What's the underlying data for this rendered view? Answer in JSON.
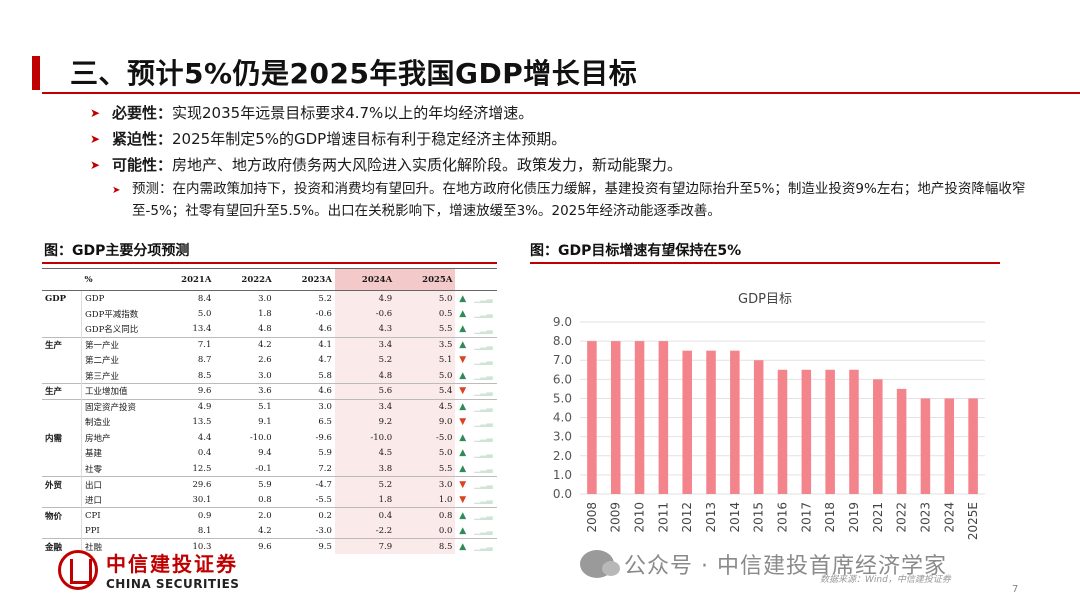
{
  "slide": {
    "title": "三、预计5%仍是2025年我国GDP增长目标",
    "page_number": "7",
    "source": "数据来源：Wind，中信建投证券",
    "watermark": "公众号 · 中信建投首席经济学家",
    "logo": {
      "cn": "中信建投证券",
      "en": "CHINA SECURITIES"
    }
  },
  "bullets": [
    {
      "label": "必要性：",
      "text": "实现2035年远景目标要求4.7%以上的年均经济增速。"
    },
    {
      "label": "紧迫性：",
      "text": "2025年制定5%的GDP增速目标有利于稳定经济主体预期。"
    },
    {
      "label": "可能性：",
      "text": "房地产、地方政府债务两大风险进入实质化解阶段。政策发力，新动能聚力。"
    }
  ],
  "sub_bullet": "预测：在内需政策加持下，投资和消费均有望回升。在地方政府化债压力缓解，基建投资有望边际抬升至5%；制造业投资9%左右；地产投资降幅收窄至-5%；社零有望回升至5.5%。出口在关税影响下，增速放缓至3%。2025年经济动能逐季改善。",
  "left_caption": "图：GDP主要分项预测",
  "right_caption": "图：GDP目标增速有望保持在5%",
  "table": {
    "headers": [
      "%",
      "2021A",
      "2022A",
      "2023A",
      "2024A",
      "2025A"
    ],
    "rows": [
      {
        "cat": "GDP",
        "name": "GDP",
        "v": [
          "8.4",
          "3.0",
          "5.2",
          "4.9",
          "5.0"
        ],
        "trend": "up",
        "grp": true
      },
      {
        "cat": "",
        "name": "GDP平减指数",
        "v": [
          "5.0",
          "1.8",
          "-0.6",
          "-0.6",
          "0.5"
        ],
        "trend": "up"
      },
      {
        "cat": "",
        "name": "GDP名义同比",
        "v": [
          "13.4",
          "4.8",
          "4.6",
          "4.3",
          "5.5"
        ],
        "trend": "up"
      },
      {
        "cat": "生产",
        "name": "第一产业",
        "v": [
          "7.1",
          "4.2",
          "4.1",
          "3.4",
          "3.5"
        ],
        "trend": "up",
        "grp": true
      },
      {
        "cat": "",
        "name": "第二产业",
        "v": [
          "8.7",
          "2.6",
          "4.7",
          "5.2",
          "5.1"
        ],
        "trend": "down"
      },
      {
        "cat": "",
        "name": "第三产业",
        "v": [
          "8.5",
          "3.0",
          "5.8",
          "4.8",
          "5.0"
        ],
        "trend": "up"
      },
      {
        "cat": "生产",
        "name": "工业增加值",
        "v": [
          "9.6",
          "3.6",
          "4.6",
          "5.6",
          "5.4"
        ],
        "trend": "down",
        "grp": true
      },
      {
        "cat": "",
        "name": "固定资产投资",
        "v": [
          "4.9",
          "5.1",
          "3.0",
          "3.4",
          "4.5"
        ],
        "trend": "up",
        "grp": true
      },
      {
        "cat": "",
        "name": "制造业",
        "v": [
          "13.5",
          "9.1",
          "6.5",
          "9.2",
          "9.0"
        ],
        "trend": "down"
      },
      {
        "cat": "内需",
        "name": "房地产",
        "v": [
          "4.4",
          "-10.0",
          "-9.6",
          "-10.0",
          "-5.0"
        ],
        "trend": "up"
      },
      {
        "cat": "",
        "name": "基建",
        "v": [
          "0.4",
          "9.4",
          "5.9",
          "4.5",
          "5.0"
        ],
        "trend": "up"
      },
      {
        "cat": "",
        "name": "社零",
        "v": [
          "12.5",
          "-0.1",
          "7.2",
          "3.8",
          "5.5"
        ],
        "trend": "up"
      },
      {
        "cat": "外贸",
        "name": "出口",
        "v": [
          "29.6",
          "5.9",
          "-4.7",
          "5.2",
          "3.0"
        ],
        "trend": "down",
        "grp": true
      },
      {
        "cat": "",
        "name": "进口",
        "v": [
          "30.1",
          "0.8",
          "-5.5",
          "1.8",
          "1.0"
        ],
        "trend": "down"
      },
      {
        "cat": "物价",
        "name": "CPI",
        "v": [
          "0.9",
          "2.0",
          "0.2",
          "0.4",
          "0.8"
        ],
        "trend": "up",
        "grp": true
      },
      {
        "cat": "",
        "name": "PPI",
        "v": [
          "8.1",
          "4.2",
          "-3.0",
          "-2.2",
          "0.0"
        ],
        "trend": "up"
      },
      {
        "cat": "金融",
        "name": "社融",
        "v": [
          "10.3",
          "9.6",
          "9.5",
          "7.9",
          "8.5"
        ],
        "trend": "up",
        "grp": true
      }
    ]
  },
  "chart_data": {
    "type": "bar",
    "title": "GDP目标",
    "categories": [
      "2008",
      "2009",
      "2010",
      "2011",
      "2012",
      "2013",
      "2014",
      "2015",
      "2016",
      "2017",
      "2018",
      "2019",
      "2021",
      "2022",
      "2023",
      "2024",
      "2025E"
    ],
    "values": [
      8.0,
      8.0,
      8.0,
      8.0,
      7.5,
      7.5,
      7.5,
      7.0,
      6.5,
      6.5,
      6.5,
      6.5,
      6.0,
      5.5,
      5.0,
      5.0,
      5.0
    ],
    "ylim": [
      0,
      9
    ],
    "yticks": [
      "0.0",
      "1.0",
      "2.0",
      "3.0",
      "4.0",
      "5.0",
      "6.0",
      "7.0",
      "8.0",
      "9.0"
    ],
    "bar_color": "#f4848c",
    "grid": true,
    "xlabel": "",
    "ylabel": ""
  }
}
